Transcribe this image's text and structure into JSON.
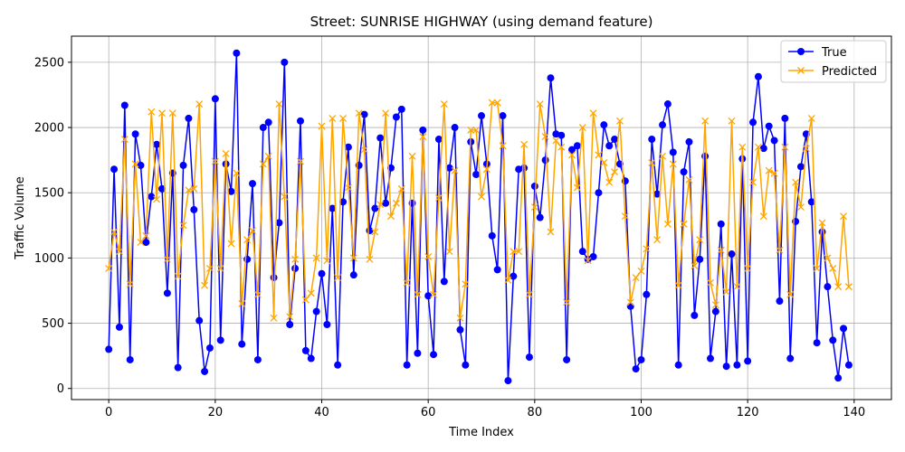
{
  "chart_data": {
    "type": "line",
    "title": "Street: SUNRISE HIGHWAY (using demand feature)",
    "xlabel": "Time Index",
    "ylabel": "Traffic Volume",
    "xlim": [
      -7,
      147
    ],
    "ylim": [
      -85,
      2700
    ],
    "xticks": [
      0,
      20,
      40,
      60,
      80,
      100,
      120,
      140
    ],
    "yticks": [
      0,
      500,
      1000,
      1500,
      2000,
      2500
    ],
    "grid": true,
    "legend_position": "top-right",
    "x": [
      0,
      1,
      2,
      3,
      4,
      5,
      6,
      7,
      8,
      9,
      10,
      11,
      12,
      13,
      14,
      15,
      16,
      17,
      18,
      19,
      20,
      21,
      22,
      23,
      24,
      25,
      26,
      27,
      28,
      29,
      30,
      31,
      32,
      33,
      34,
      35,
      36,
      37,
      38,
      39,
      40,
      41,
      42,
      43,
      44,
      45,
      46,
      47,
      48,
      49,
      50,
      51,
      52,
      53,
      54,
      55,
      56,
      57,
      58,
      59,
      60,
      61,
      62,
      63,
      64,
      65,
      66,
      67,
      68,
      69,
      70,
      71,
      72,
      73,
      74,
      75,
      76,
      77,
      78,
      79,
      80,
      81,
      82,
      83,
      84,
      85,
      86,
      87,
      88,
      89,
      90,
      91,
      92,
      93,
      94,
      95,
      96,
      97,
      98,
      99,
      100,
      101,
      102,
      103,
      104,
      105,
      106,
      107,
      108,
      109,
      110,
      111,
      112,
      113,
      114,
      115,
      116,
      117,
      118,
      119,
      120,
      121,
      122,
      123,
      124,
      125,
      126,
      127,
      128,
      129,
      130,
      131,
      132,
      133,
      134,
      135,
      136,
      137,
      138,
      139
    ],
    "series": [
      {
        "name": "True",
        "color": "#0000ff",
        "marker": "circle",
        "values": [
          300,
          1680,
          470,
          2170,
          220,
          1950,
          1710,
          1120,
          1470,
          1870,
          1530,
          730,
          1650,
          160,
          1710,
          2070,
          1370,
          520,
          130,
          310,
          2220,
          370,
          1720,
          1510,
          2570,
          340,
          990,
          1570,
          220,
          2000,
          2040,
          850,
          1270,
          2500,
          490,
          920,
          2050,
          290,
          230,
          590,
          880,
          490,
          1380,
          180,
          1430,
          1850,
          870,
          1710,
          2100,
          1210,
          1380,
          1920,
          1420,
          1690,
          2080,
          2140,
          180,
          1420,
          270,
          1980,
          710,
          260,
          1910,
          820,
          1690,
          2000,
          450,
          180,
          1890,
          1640,
          2090,
          1720,
          1170,
          910,
          2090,
          60,
          860,
          1680,
          1690,
          240,
          1550,
          1310,
          1750,
          2380,
          1950,
          1940,
          220,
          1830,
          1860,
          1050,
          990,
          1010,
          1500,
          2020,
          1860,
          1910,
          1720,
          1590,
          630,
          150,
          220,
          720,
          1910,
          1490,
          2020,
          2180,
          1810,
          180,
          1660,
          1890,
          560,
          990,
          1780,
          230,
          590,
          1260,
          170,
          1030,
          180,
          1760,
          210,
          2040,
          2390,
          1840,
          2010,
          1900,
          670,
          2070,
          230,
          1280,
          1700,
          1950,
          1430,
          350,
          1200,
          780,
          370,
          80,
          460,
          180
        ]
      },
      {
        "name": "Predicted",
        "color": "#ffa500",
        "marker": "x",
        "values": [
          920,
          1200,
          1050,
          1910,
          800,
          1720,
          1120,
          1170,
          2120,
          1450,
          2110,
          990,
          2110,
          860,
          1250,
          1520,
          1530,
          2180,
          790,
          920,
          1740,
          920,
          1800,
          1110,
          1650,
          650,
          1140,
          1210,
          720,
          1720,
          1780,
          540,
          2180,
          1470,
          550,
          990,
          1740,
          680,
          730,
          1000,
          2010,
          980,
          2070,
          850,
          2070,
          1540,
          1000,
          2110,
          1830,
          990,
          1200,
          1410,
          2110,
          1320,
          1420,
          1530,
          810,
          1780,
          720,
          1930,
          1010,
          720,
          1460,
          2180,
          1050,
          1670,
          540,
          800,
          1980,
          1980,
          1470,
          1680,
          2190,
          2190,
          1860,
          830,
          1050,
          1050,
          1870,
          720,
          1390,
          2180,
          1930,
          1200,
          1900,
          1850,
          660,
          1790,
          1540,
          2000,
          980,
          2110,
          1790,
          1730,
          1580,
          1660,
          2050,
          1320,
          660,
          850,
          900,
          1070,
          1730,
          1140,
          1780,
          1260,
          1720,
          790,
          1260,
          1600,
          940,
          1140,
          2050,
          810,
          640,
          1060,
          740,
          2050,
          780,
          1850,
          920,
          1580,
          1850,
          1320,
          1670,
          1650,
          1060,
          1850,
          720,
          1580,
          1390,
          1840,
          2070,
          920,
          1270,
          1000,
          920,
          780,
          1320,
          780
        ]
      }
    ]
  }
}
